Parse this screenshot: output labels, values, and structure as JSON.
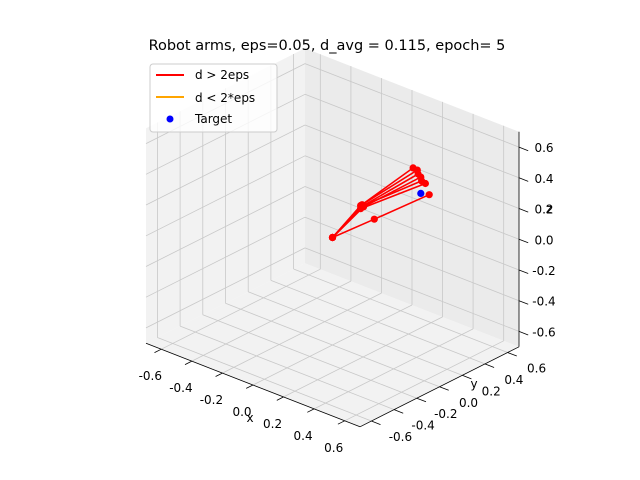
{
  "chart_data": {
    "type": "3d-line-scatter",
    "title": "Robot arms, eps=0.05, d_avg = 0.115, epoch=   5",
    "xlabel": "x",
    "ylabel": "y",
    "zlabel": "z",
    "xlim": [
      -0.7,
      0.7
    ],
    "ylim": [
      -0.7,
      0.7
    ],
    "zlim": [
      -0.7,
      0.7
    ],
    "xticks": [
      "-0.6",
      "-0.4",
      "-0.2",
      "0.0",
      "0.2",
      "0.4",
      "0.6"
    ],
    "yticks": [
      "-0.6",
      "-0.4",
      "-0.2",
      "0.0",
      "0.2",
      "0.4",
      "0.6"
    ],
    "zticks": [
      "-0.6",
      "-0.4",
      "-0.2",
      "0.0",
      "0.2",
      "0.4",
      "0.6"
    ],
    "grid": true,
    "legend_position": "top-left",
    "legend": [
      {
        "label": "d > 2eps",
        "kind": "line",
        "color": "#ff0000"
      },
      {
        "label": "d < 2*eps",
        "kind": "line",
        "color": "#ffa500"
      },
      {
        "label": "Target",
        "kind": "marker",
        "color": "#0000ff"
      }
    ],
    "series": [
      {
        "name": "d > 2eps",
        "color": "#ff0000",
        "arms": [
          {
            "points": [
              [
                0.0,
                0.0,
                0.0
              ],
              [
                0.05,
                0.18,
                0.16
              ],
              [
                0.26,
                0.36,
                0.42
              ]
            ]
          },
          {
            "points": [
              [
                0.0,
                0.0,
                0.0
              ],
              [
                0.06,
                0.18,
                0.17
              ],
              [
                0.28,
                0.37,
                0.41
              ]
            ]
          },
          {
            "points": [
              [
                0.0,
                0.0,
                0.0
              ],
              [
                0.05,
                0.19,
                0.15
              ],
              [
                0.3,
                0.35,
                0.4
              ]
            ]
          },
          {
            "points": [
              [
                0.0,
                0.0,
                0.0
              ],
              [
                0.07,
                0.18,
                0.16
              ],
              [
                0.31,
                0.36,
                0.38
              ]
            ]
          },
          {
            "points": [
              [
                0.0,
                0.0,
                0.0
              ],
              [
                0.06,
                0.19,
                0.16
              ],
              [
                0.33,
                0.34,
                0.37
              ]
            ]
          },
          {
            "points": [
              [
                0.0,
                0.0,
                0.0
              ],
              [
                0.05,
                0.18,
                0.14
              ],
              [
                0.34,
                0.36,
                0.35
              ]
            ]
          },
          {
            "points": [
              [
                0.0,
                0.0,
                0.0
              ],
              [
                0.11,
                0.22,
                0.08
              ],
              [
                0.38,
                0.34,
                0.3
              ]
            ]
          }
        ]
      }
    ],
    "target": {
      "name": "Target",
      "color": "#0000ff",
      "point": [
        0.34,
        0.32,
        0.3
      ]
    }
  }
}
